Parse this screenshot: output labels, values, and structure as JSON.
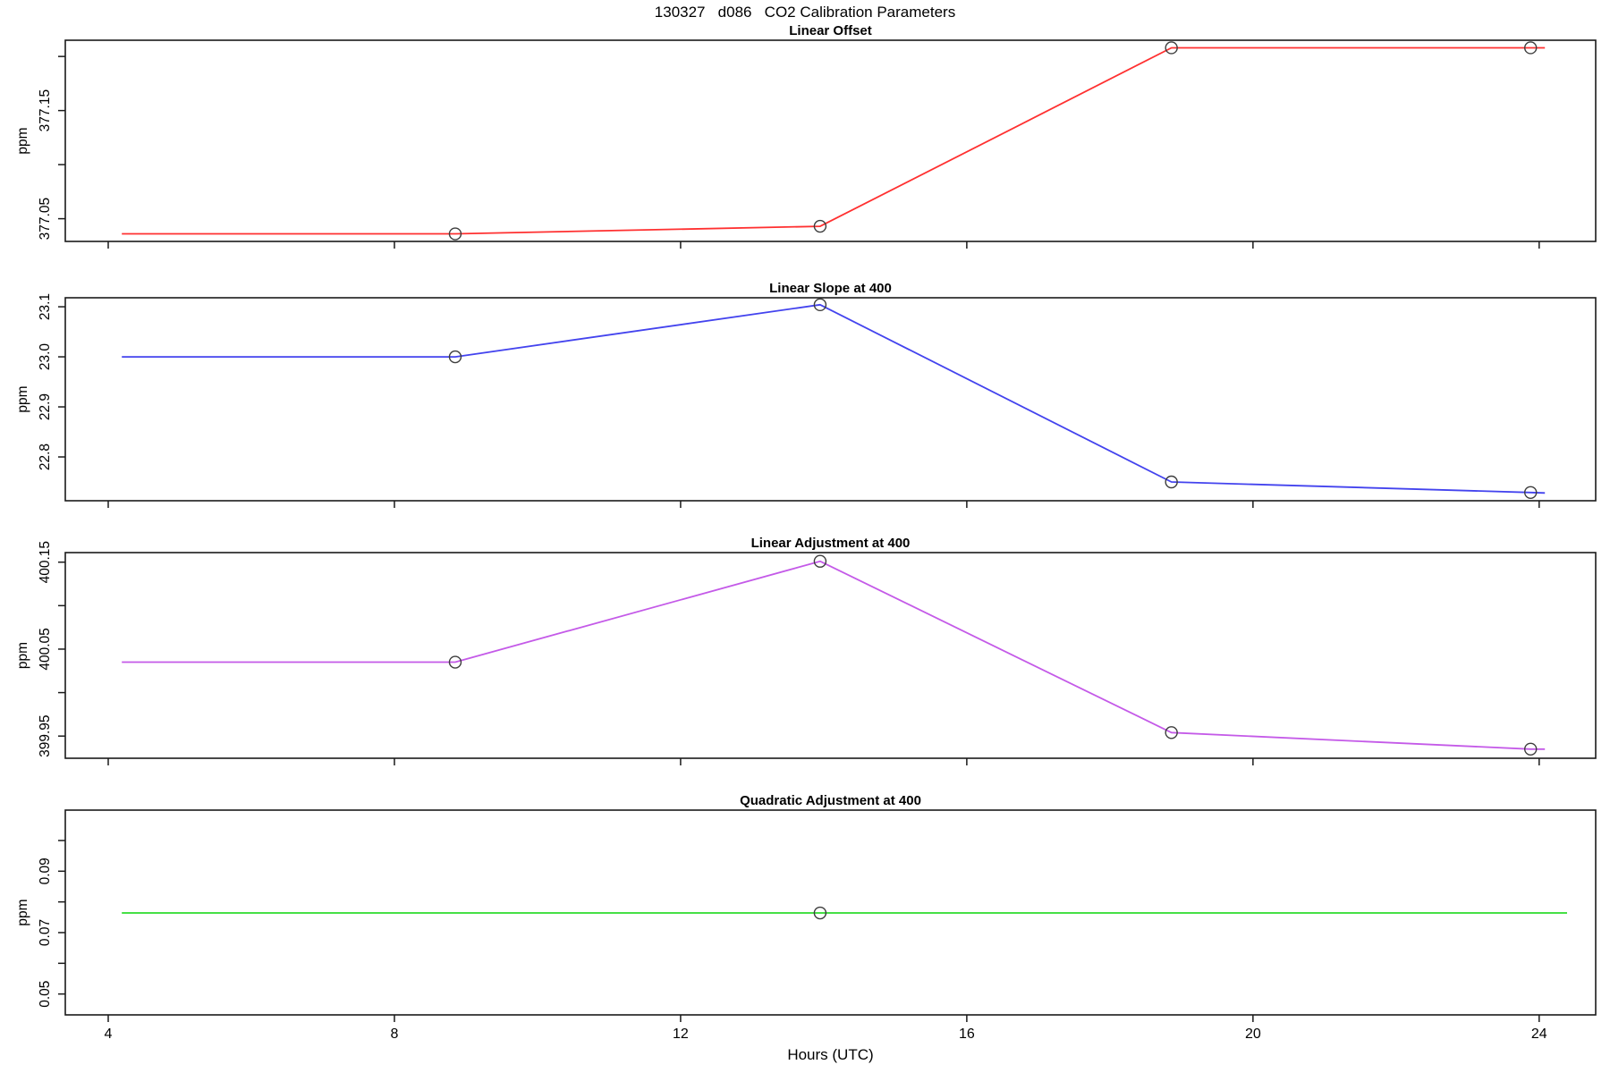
{
  "page": {
    "title": "130327   d086   CO2 Calibration Parameters",
    "xlabel": "Hours (UTC)"
  },
  "colors": {
    "axis": "#1a1a1a",
    "marker": "#3d3d3d",
    "offset_red": "#ff3030",
    "slope_blue": "#4343ee",
    "adjustment_magenta": "#c45ae8",
    "quadratic_green": "#2bdc2b"
  },
  "chart_data": [
    {
      "type": "line",
      "title": "Linear Offset",
      "ylabel": "ppm",
      "color_key": "offset_red",
      "xlim": [
        3.4,
        24.79
      ],
      "ylim": [
        377.029,
        377.215
      ],
      "xticks": [
        4,
        8,
        12,
        16,
        20,
        24
      ],
      "yticks": [
        {
          "v": 377.05,
          "label": "377.05"
        },
        {
          "v": 377.1,
          "label": ""
        },
        {
          "v": 377.15,
          "label": "377.15"
        },
        {
          "v": 377.2,
          "label": ""
        }
      ],
      "line": {
        "x": [
          4.19,
          8.85,
          13.95,
          18.86,
          23.88,
          24.08
        ],
        "y": [
          377.036,
          377.036,
          377.043,
          377.208,
          377.208,
          377.208
        ]
      },
      "points": {
        "x": [
          8.85,
          13.95,
          18.86,
          23.88
        ],
        "y": [
          377.036,
          377.043,
          377.208,
          377.208
        ]
      },
      "grid": false,
      "legend": null
    },
    {
      "type": "line",
      "title": "Linear Slope at 400",
      "ylabel": "ppm",
      "color_key": "slope_blue",
      "xlim": [
        3.4,
        24.79
      ],
      "ylim": [
        22.7125,
        23.118
      ],
      "xticks": [
        4,
        8,
        12,
        16,
        20,
        24
      ],
      "yticks": [
        {
          "v": 22.8,
          "label": "22.8"
        },
        {
          "v": 22.9,
          "label": "22.9"
        },
        {
          "v": 23.0,
          "label": "23.0"
        },
        {
          "v": 23.1,
          "label": "23.1"
        }
      ],
      "line": {
        "x": [
          4.19,
          8.85,
          13.95,
          18.86,
          23.88,
          24.08
        ],
        "y": [
          23.0,
          23.0,
          23.104,
          22.75,
          22.729,
          22.728
        ]
      },
      "points": {
        "x": [
          8.85,
          13.95,
          18.86,
          23.88
        ],
        "y": [
          23.0,
          23.104,
          22.75,
          22.729
        ]
      },
      "grid": false,
      "legend": null
    },
    {
      "type": "line",
      "title": "Linear Adjustment at 400",
      "ylabel": "ppm",
      "color_key": "adjustment_magenta",
      "xlim": [
        3.4,
        24.79
      ],
      "ylim": [
        399.9245,
        400.161
      ],
      "xticks": [
        4,
        8,
        12,
        16,
        20,
        24
      ],
      "yticks": [
        {
          "v": 399.95,
          "label": "399.95"
        },
        {
          "v": 400.0,
          "label": ""
        },
        {
          "v": 400.05,
          "label": "400.05"
        },
        {
          "v": 400.1,
          "label": ""
        },
        {
          "v": 400.15,
          "label": "400.15"
        }
      ],
      "line": {
        "x": [
          4.19,
          8.85,
          13.95,
          18.86,
          23.88,
          24.08
        ],
        "y": [
          400.035,
          400.035,
          400.151,
          399.954,
          399.935,
          399.935
        ]
      },
      "points": {
        "x": [
          8.85,
          13.95,
          18.86,
          23.88
        ],
        "y": [
          400.035,
          400.151,
          399.954,
          399.935
        ]
      },
      "grid": false,
      "legend": null
    },
    {
      "type": "line",
      "title": "Quadratic Adjustment at 400",
      "ylabel": "ppm",
      "color_key": "quadratic_green",
      "xlim": [
        3.4,
        24.79
      ],
      "ylim": [
        0.0432,
        0.1099
      ],
      "xticks": [
        4,
        8,
        12,
        16,
        20,
        24
      ],
      "yticks": [
        {
          "v": 0.05,
          "label": "0.05"
        },
        {
          "v": 0.06,
          "label": ""
        },
        {
          "v": 0.07,
          "label": "0.07"
        },
        {
          "v": 0.08,
          "label": ""
        },
        {
          "v": 0.09,
          "label": "0.09"
        },
        {
          "v": 0.1,
          "label": ""
        }
      ],
      "line": {
        "x": [
          4.19,
          13.95,
          24.39
        ],
        "y": [
          0.0764,
          0.0764,
          0.0764
        ]
      },
      "points": {
        "x": [
          13.95
        ],
        "y": [
          0.0764
        ]
      },
      "grid": false,
      "legend": null
    }
  ]
}
